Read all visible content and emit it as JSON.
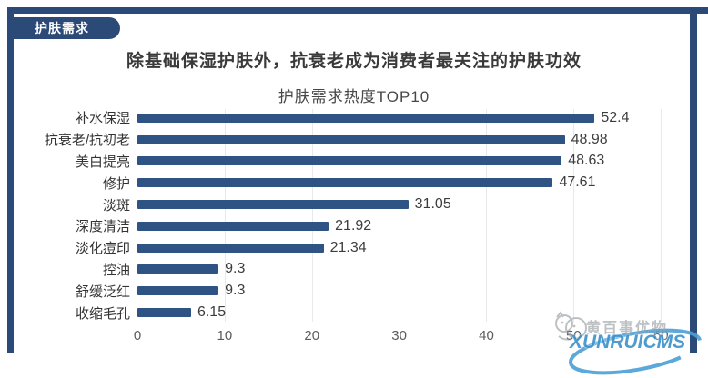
{
  "badge": {
    "label": "护肤需求"
  },
  "main_title": "除基础保湿护肤外，抗衰老成为消费者最关注的护肤功效",
  "chart_data": {
    "type": "bar",
    "orientation": "horizontal",
    "title": "护肤需求热度TOP10",
    "categories": [
      "补水保湿",
      "抗衰老/抗初老",
      "美白提亮",
      "修护",
      "淡斑",
      "深度清洁",
      "淡化痘印",
      "控油",
      "舒缓泛红",
      "收缩毛孔"
    ],
    "values": [
      52.4,
      48.98,
      48.63,
      47.61,
      31.05,
      21.92,
      21.34,
      9.3,
      9.3,
      6.15
    ],
    "xlabel": "",
    "ylabel": "",
    "x_ticks": [
      0,
      10,
      20,
      30,
      40,
      50,
      60
    ],
    "xlim": [
      0,
      63
    ],
    "grid": true,
    "legend": false,
    "bar_color": "#2f5484",
    "value_labels_shown": true
  },
  "frame_color": "#2c4a77",
  "watermark": {
    "cn_text": "黄百事优物",
    "brand": "XUNRUICMS",
    "brand_color": "#3f93cc"
  }
}
